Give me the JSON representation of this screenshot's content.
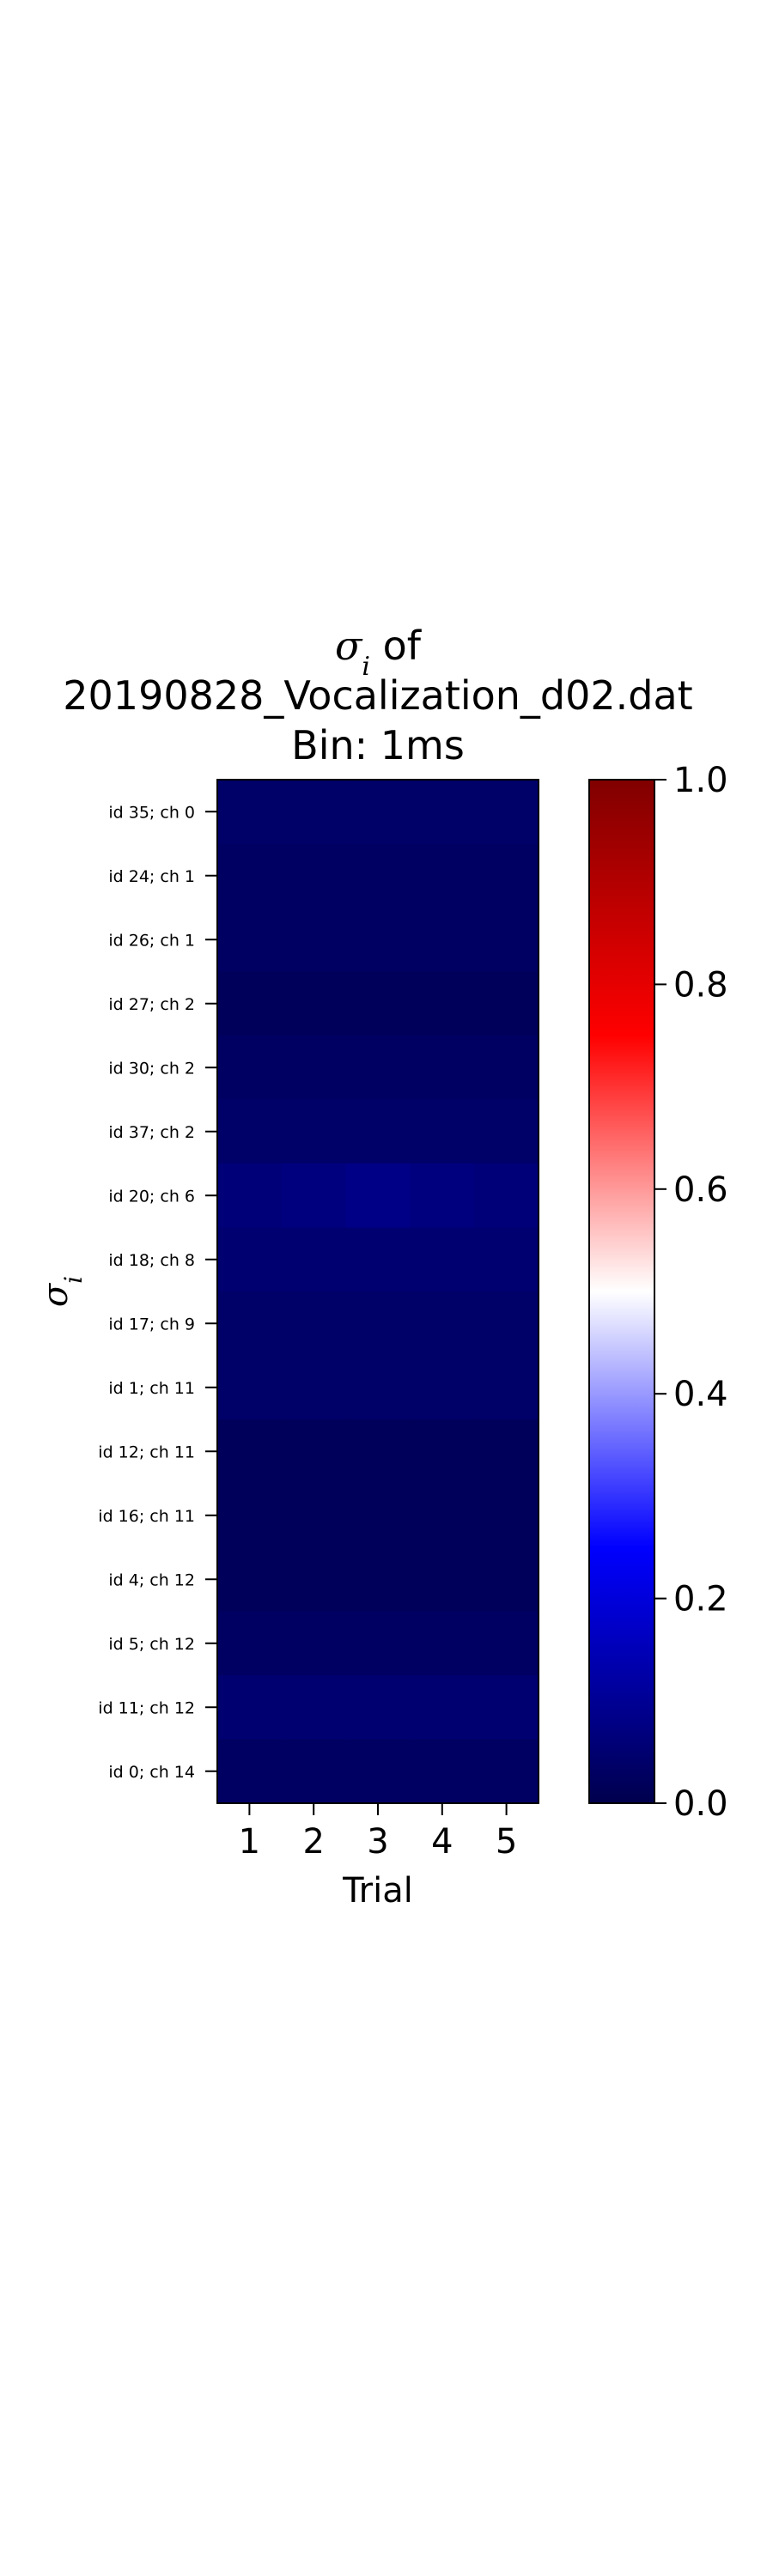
{
  "chart_data": {
    "type": "heatmap",
    "title_lines": [
      "σ",
      "20190828_Vocalization_d02.dat",
      "Bin: 1ms"
    ],
    "title_symbol": "σ",
    "title_sub": "i",
    "title_suffix": " of",
    "title_file": "20190828_Vocalization_d02.dat",
    "title_bin": "Bin: 1ms",
    "xlabel": "Trial",
    "ylabel_symbol": "σ",
    "ylabel_sub": "i",
    "x_categories": [
      "1",
      "2",
      "3",
      "4",
      "5"
    ],
    "y_categories": [
      "id 35; ch 0",
      "id 24; ch 1",
      "id 26; ch 1",
      "id 27; ch 2",
      "id 30; ch 2",
      "id 37; ch 2",
      "id 20; ch 6",
      "id 18; ch 8",
      "id 17; ch 9",
      "id 1; ch 11",
      "id 12; ch 11",
      "id 16; ch 11",
      "id 4; ch 12",
      "id 5; ch 12",
      "id 11; ch 12",
      "id 0; ch 14"
    ],
    "values": [
      [
        0.04,
        0.04,
        0.04,
        0.04,
        0.04
      ],
      [
        0.03,
        0.03,
        0.03,
        0.03,
        0.03
      ],
      [
        0.03,
        0.03,
        0.03,
        0.03,
        0.03
      ],
      [
        0.02,
        0.02,
        0.02,
        0.02,
        0.02
      ],
      [
        0.03,
        0.03,
        0.03,
        0.03,
        0.03
      ],
      [
        0.04,
        0.04,
        0.04,
        0.04,
        0.04
      ],
      [
        0.06,
        0.07,
        0.08,
        0.07,
        0.06
      ],
      [
        0.05,
        0.05,
        0.05,
        0.05,
        0.05
      ],
      [
        0.04,
        0.04,
        0.04,
        0.04,
        0.04
      ],
      [
        0.04,
        0.04,
        0.04,
        0.04,
        0.04
      ],
      [
        0.02,
        0.02,
        0.02,
        0.02,
        0.02
      ],
      [
        0.02,
        0.02,
        0.02,
        0.02,
        0.02
      ],
      [
        0.02,
        0.02,
        0.02,
        0.02,
        0.02
      ],
      [
        0.03,
        0.03,
        0.03,
        0.03,
        0.03
      ],
      [
        0.05,
        0.05,
        0.05,
        0.05,
        0.05
      ],
      [
        0.03,
        0.03,
        0.03,
        0.03,
        0.03
      ]
    ],
    "colormap": "seismic",
    "vmin": 0.0,
    "vmax": 1.0,
    "colorbar_ticks": [
      "0.0",
      "0.2",
      "0.4",
      "0.6",
      "0.8",
      "1.0"
    ],
    "colorbar_values": [
      0.0,
      0.2,
      0.4,
      0.6,
      0.8,
      1.0
    ],
    "colorbar_stops": [
      {
        "offset": 0.0,
        "color": "#00004d"
      },
      {
        "offset": 0.25,
        "color": "#0000ff"
      },
      {
        "offset": 0.5,
        "color": "#ffffff"
      },
      {
        "offset": 0.75,
        "color": "#ff0000"
      },
      {
        "offset": 1.0,
        "color": "#800000"
      }
    ],
    "colorbar_position": "right",
    "grid": false
  }
}
